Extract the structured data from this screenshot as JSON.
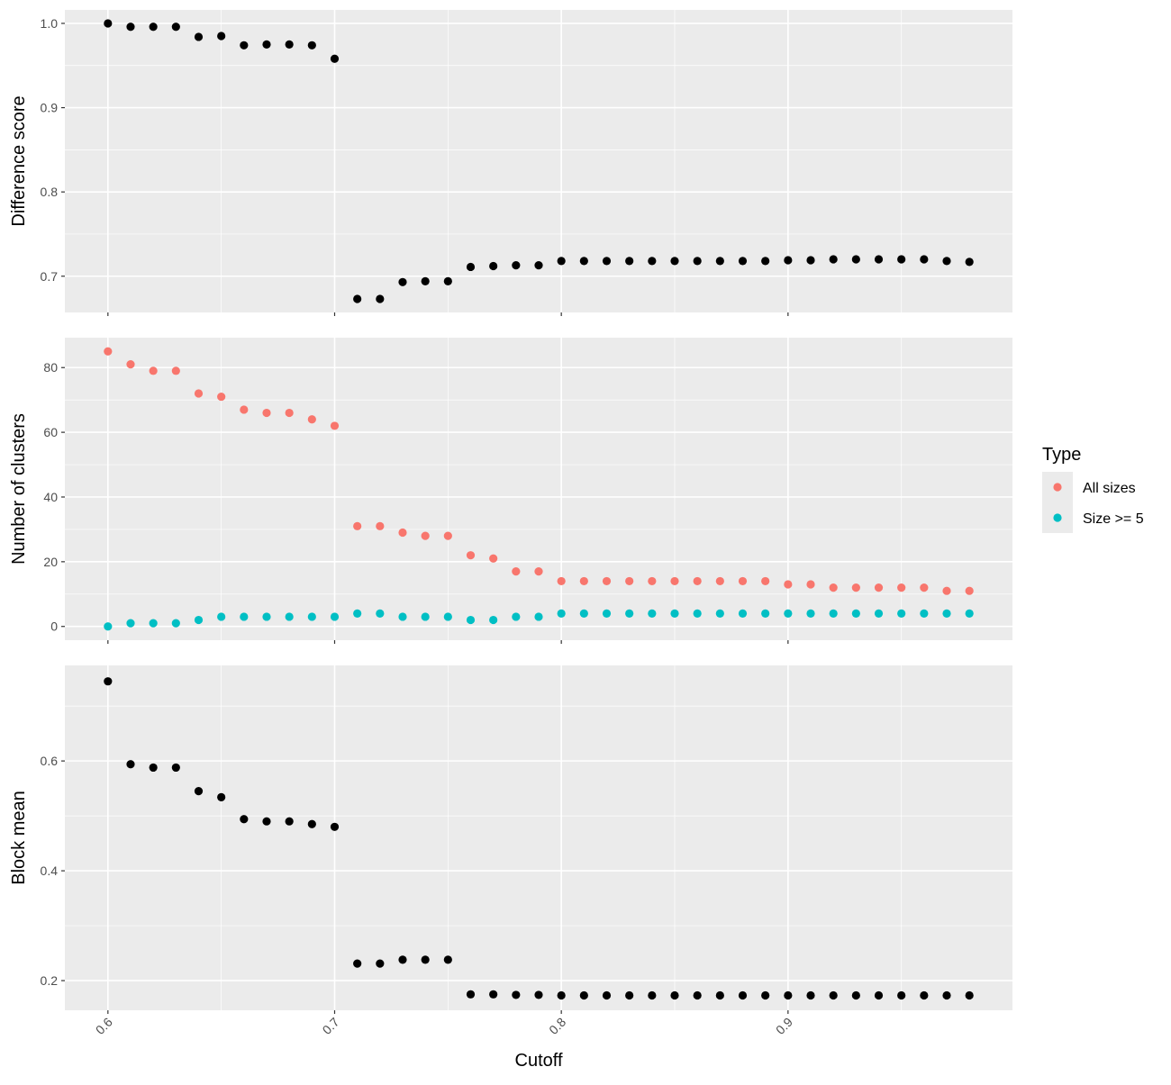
{
  "chart_data": {
    "type": "scatter",
    "layout": "three vertically stacked panels sharing the x axis",
    "xlabel": "Cutoff",
    "x_ticks": [
      "0.6",
      "0.7",
      "0.8",
      "0.9"
    ],
    "x_tick_values": [
      0.6,
      0.7,
      0.8,
      0.9
    ],
    "xlim": [
      0.581,
      0.999
    ],
    "x": [
      0.6,
      0.61,
      0.62,
      0.63,
      0.64,
      0.65,
      0.66,
      0.67,
      0.68,
      0.69,
      0.7,
      0.71,
      0.72,
      0.73,
      0.74,
      0.75,
      0.76,
      0.77,
      0.78,
      0.79,
      0.8,
      0.81,
      0.82,
      0.83,
      0.84,
      0.85,
      0.86,
      0.87,
      0.88,
      0.89,
      0.9,
      0.91,
      0.92,
      0.93,
      0.94,
      0.95,
      0.96,
      0.97,
      0.98
    ],
    "grid": true,
    "background": "#ebebeb",
    "panels": [
      {
        "ylabel": "Difference score",
        "ylim": [
          0.657,
          1.016
        ],
        "y_ticks": [
          "0.7",
          "0.8",
          "0.9",
          "1.0"
        ],
        "y_tick_values": [
          0.7,
          0.8,
          0.9,
          1.0
        ],
        "series": [
          {
            "color": "#000000",
            "values": [
              1.0,
              0.996,
              0.996,
              0.996,
              0.984,
              0.985,
              0.974,
              0.975,
              0.975,
              0.974,
              0.958,
              0.673,
              0.673,
              0.693,
              0.694,
              0.694,
              0.711,
              0.712,
              0.713,
              0.713,
              0.718,
              0.718,
              0.718,
              0.718,
              0.718,
              0.718,
              0.718,
              0.718,
              0.718,
              0.718,
              0.719,
              0.719,
              0.72,
              0.72,
              0.72,
              0.72,
              0.72,
              0.718,
              0.717
            ]
          }
        ]
      },
      {
        "ylabel": "Number of clusters",
        "ylim": [
          -4.25,
          89.25
        ],
        "y_ticks": [
          "0",
          "20",
          "40",
          "60",
          "80"
        ],
        "y_tick_values": [
          0,
          20,
          40,
          60,
          80
        ],
        "series": [
          {
            "name": "All sizes",
            "color": "#f8766d",
            "values": [
              85,
              81,
              79,
              79,
              72,
              71,
              67,
              66,
              66,
              64,
              62,
              31,
              31,
              29,
              28,
              28,
              22,
              21,
              17,
              17,
              14,
              14,
              14,
              14,
              14,
              14,
              14,
              14,
              14,
              14,
              13,
              13,
              12,
              12,
              12,
              12,
              12,
              11,
              11
            ]
          },
          {
            "name": "Size >= 5",
            "color": "#00bfc4",
            "values": [
              0,
              1,
              1,
              1,
              2,
              3,
              3,
              3,
              3,
              3,
              3,
              4,
              4,
              3,
              3,
              3,
              2,
              2,
              3,
              3,
              4,
              4,
              4,
              4,
              4,
              4,
              4,
              4,
              4,
              4,
              4,
              4,
              4,
              4,
              4,
              4,
              4,
              4,
              4
            ]
          }
        ]
      },
      {
        "ylabel": "Block mean",
        "ylim": [
          0.146,
          0.774
        ],
        "y_ticks": [
          "0.2",
          "0.4",
          "0.6"
        ],
        "y_tick_values": [
          0.2,
          0.4,
          0.6
        ],
        "series": [
          {
            "color": "#000000",
            "values": [
              0.745,
              0.594,
              0.588,
              0.588,
              0.545,
              0.534,
              0.494,
              0.49,
              0.49,
              0.485,
              0.48,
              0.231,
              0.231,
              0.238,
              0.238,
              0.238,
              0.175,
              0.175,
              0.174,
              0.174,
              0.173,
              0.173,
              0.173,
              0.173,
              0.173,
              0.173,
              0.173,
              0.173,
              0.173,
              0.173,
              0.173,
              0.173,
              0.173,
              0.173,
              0.173,
              0.173,
              0.173,
              0.173,
              0.173
            ]
          }
        ]
      }
    ],
    "legend": {
      "title": "Type",
      "placement": "right",
      "entries": [
        {
          "label": "All sizes",
          "color": "#f8766d"
        },
        {
          "label": "Size >= 5",
          "color": "#00bfc4"
        }
      ]
    }
  }
}
